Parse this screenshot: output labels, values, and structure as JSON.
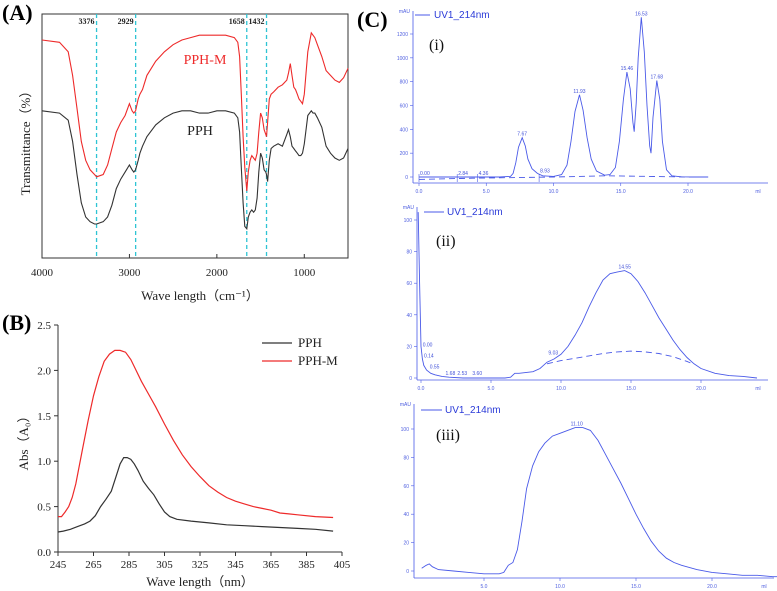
{
  "figure": {
    "panel_labels": [
      "(A)",
      "(B)",
      "(C)"
    ]
  },
  "colors": {
    "pph": "#333333",
    "pphm": "#ee2a2a",
    "guide": "#2ec4d4",
    "uv": "#4a5ae8"
  },
  "chart_data": [
    {
      "id": "A",
      "type": "line",
      "title": "",
      "xlabel": "Wave length（cm⁻¹）",
      "ylabel": "Transmittance（%）",
      "xlim": [
        4000,
        500
      ],
      "xticks": [
        "4000",
        "3000",
        "2000",
        "1000"
      ],
      "xtick_values": [
        4000,
        3000,
        2000,
        1000
      ],
      "y_units": "arbitrary (relative transmittance, 0 = bottom, 1 = top)",
      "ylim": [
        0,
        1
      ],
      "guide_lines": [
        {
          "x": 3376,
          "label": "3376"
        },
        {
          "x": 2929,
          "label": "2929"
        },
        {
          "x": 1658,
          "label": "1658"
        },
        {
          "x": 1432,
          "label": "1432"
        }
      ],
      "annotations": [
        {
          "text": "PPH-M",
          "series": "PPH-M"
        },
        {
          "text": "PPH",
          "series": "PPH"
        }
      ],
      "series": [
        {
          "name": "PPH-M",
          "x": [
            4000,
            3800,
            3700,
            3650,
            3600,
            3550,
            3500,
            3450,
            3400,
            3376,
            3300,
            3250,
            3200,
            3150,
            3100,
            3050,
            3000,
            2970,
            2950,
            2929,
            2900,
            2880,
            2850,
            2800,
            2700,
            2600,
            2500,
            2400,
            2300,
            2200,
            2100,
            2000,
            1900,
            1800,
            1760,
            1740,
            1720,
            1700,
            1680,
            1658,
            1640,
            1620,
            1600,
            1580,
            1560,
            1540,
            1520,
            1500,
            1480,
            1460,
            1440,
            1432,
            1420,
            1400,
            1380,
            1350,
            1300,
            1250,
            1200,
            1180,
            1160,
            1140,
            1120,
            1100,
            1080,
            1060,
            1040,
            1020,
            1000,
            960,
            920,
            900,
            880,
            850,
            800,
            750,
            700,
            650,
            600,
            550,
            500
          ],
          "y": [
            0.89,
            0.88,
            0.84,
            0.74,
            0.6,
            0.46,
            0.38,
            0.34,
            0.32,
            0.31,
            0.32,
            0.36,
            0.43,
            0.5,
            0.54,
            0.57,
            0.62,
            0.59,
            0.58,
            0.59,
            0.64,
            0.66,
            0.68,
            0.74,
            0.8,
            0.84,
            0.87,
            0.89,
            0.9,
            0.91,
            0.91,
            0.91,
            0.91,
            0.9,
            0.88,
            0.82,
            0.66,
            0.48,
            0.35,
            0.25,
            0.33,
            0.38,
            0.4,
            0.39,
            0.38,
            0.41,
            0.5,
            0.58,
            0.56,
            0.51,
            0.49,
            0.48,
            0.54,
            0.64,
            0.66,
            0.67,
            0.69,
            0.7,
            0.72,
            0.75,
            0.79,
            0.74,
            0.69,
            0.68,
            0.66,
            0.64,
            0.63,
            0.62,
            0.66,
            0.84,
            0.92,
            0.91,
            0.9,
            0.87,
            0.82,
            0.76,
            0.74,
            0.72,
            0.71,
            0.73,
            0.77
          ]
        },
        {
          "name": "PPH",
          "x": [
            4000,
            3800,
            3700,
            3650,
            3600,
            3550,
            3500,
            3450,
            3400,
            3376,
            3300,
            3250,
            3200,
            3150,
            3100,
            3050,
            3000,
            2970,
            2950,
            2929,
            2900,
            2880,
            2850,
            2800,
            2700,
            2600,
            2500,
            2400,
            2300,
            2200,
            2100,
            2000,
            1900,
            1800,
            1760,
            1740,
            1720,
            1700,
            1680,
            1658,
            1640,
            1620,
            1600,
            1580,
            1560,
            1540,
            1520,
            1500,
            1480,
            1460,
            1440,
            1432,
            1420,
            1400,
            1380,
            1350,
            1300,
            1250,
            1200,
            1180,
            1160,
            1140,
            1120,
            1100,
            1080,
            1060,
            1040,
            1020,
            1000,
            960,
            920,
            900,
            880,
            850,
            800,
            750,
            700,
            650,
            600,
            550,
            500
          ],
          "y": [
            0.59,
            0.58,
            0.55,
            0.46,
            0.32,
            0.2,
            0.14,
            0.12,
            0.11,
            0.11,
            0.12,
            0.14,
            0.19,
            0.26,
            0.3,
            0.33,
            0.36,
            0.34,
            0.33,
            0.34,
            0.38,
            0.41,
            0.44,
            0.48,
            0.53,
            0.56,
            0.58,
            0.59,
            0.59,
            0.58,
            0.58,
            0.59,
            0.59,
            0.58,
            0.56,
            0.5,
            0.35,
            0.2,
            0.1,
            0.09,
            0.14,
            0.16,
            0.17,
            0.16,
            0.17,
            0.22,
            0.33,
            0.41,
            0.39,
            0.34,
            0.33,
            0.32,
            0.29,
            0.38,
            0.43,
            0.44,
            0.45,
            0.44,
            0.49,
            0.51,
            0.48,
            0.44,
            0.43,
            0.42,
            0.41,
            0.4,
            0.4,
            0.41,
            0.45,
            0.57,
            0.59,
            0.58,
            0.58,
            0.56,
            0.52,
            0.44,
            0.41,
            0.39,
            0.38,
            0.39,
            0.43
          ]
        }
      ]
    },
    {
      "id": "B",
      "type": "line",
      "title": "",
      "xlabel": "Wave length（nm）",
      "ylabel": "Abs（A₀）",
      "xlim": [
        245,
        405
      ],
      "ylim": [
        0,
        2.5
      ],
      "xticks": [
        "245",
        "265",
        "285",
        "305",
        "325",
        "345",
        "365",
        "385",
        "405"
      ],
      "xtick_values": [
        245,
        265,
        285,
        305,
        325,
        345,
        365,
        385,
        405
      ],
      "yticks": [
        "0.0",
        "0.5",
        "1.0",
        "1.5",
        "2.0",
        "2.5"
      ],
      "ytick_values": [
        0,
        0.5,
        1.0,
        1.5,
        2.0,
        2.5
      ],
      "legend": {
        "position": "top-right",
        "entries": [
          "PPH",
          "PPH-M"
        ]
      },
      "series": [
        {
          "name": "PPH",
          "x": [
            245,
            248,
            252,
            256,
            260,
            263,
            266,
            269,
            272,
            275,
            278,
            280,
            282,
            284,
            286,
            288,
            290,
            293,
            296,
            299,
            302,
            305,
            308,
            312,
            320,
            330,
            340,
            350,
            360,
            370,
            380,
            390,
            400
          ],
          "y": [
            0.22,
            0.23,
            0.25,
            0.28,
            0.31,
            0.34,
            0.4,
            0.5,
            0.58,
            0.67,
            0.85,
            0.97,
            1.04,
            1.04,
            1.02,
            0.97,
            0.9,
            0.78,
            0.7,
            0.63,
            0.53,
            0.44,
            0.39,
            0.36,
            0.34,
            0.32,
            0.3,
            0.29,
            0.28,
            0.27,
            0.26,
            0.25,
            0.23
          ]
        },
        {
          "name": "PPH-M",
          "x": [
            245,
            247,
            249,
            251,
            253,
            255,
            257,
            259,
            262,
            265,
            268,
            271,
            274,
            277,
            280,
            283,
            286,
            289,
            292,
            296,
            300,
            305,
            310,
            315,
            320,
            325,
            330,
            335,
            340,
            345,
            350,
            355,
            360,
            365,
            370,
            375,
            380,
            390,
            400
          ],
          "y": [
            0.39,
            0.39,
            0.44,
            0.5,
            0.6,
            0.75,
            0.95,
            1.15,
            1.45,
            1.72,
            1.93,
            2.1,
            2.18,
            2.22,
            2.22,
            2.2,
            2.12,
            2.0,
            1.88,
            1.74,
            1.6,
            1.41,
            1.23,
            1.07,
            0.94,
            0.83,
            0.73,
            0.66,
            0.6,
            0.56,
            0.53,
            0.5,
            0.48,
            0.46,
            0.43,
            0.42,
            0.41,
            0.39,
            0.38
          ]
        }
      ]
    },
    {
      "id": "C-i",
      "type": "line",
      "panel_tag": "(i)",
      "legend": {
        "position": "top-left",
        "entries": [
          "UV1_214nm"
        ]
      },
      "y_unit_label": "mAU",
      "x_unit_label": "ml",
      "xlim": [
        0,
        21.5
      ],
      "ylim": [
        0,
        1400
      ],
      "xticks": [
        "0.0",
        "5.0",
        "10.0",
        "15.0",
        "20.0"
      ],
      "xtick_values": [
        0,
        5,
        10,
        15,
        20
      ],
      "yticks": [
        "0",
        "200",
        "400",
        "600",
        "800",
        "1000",
        "1200"
      ],
      "ytick_values": [
        0,
        200,
        400,
        600,
        800,
        1000,
        1200
      ],
      "peaks": [
        {
          "x": 7.67,
          "y": 330,
          "label": "7.67"
        },
        {
          "x": 11.93,
          "y": 690,
          "label": "11.93"
        },
        {
          "x": 15.46,
          "y": 880,
          "label": "15.46"
        },
        {
          "x": 16.53,
          "y": 1340,
          "label": "16.53"
        },
        {
          "x": 17.68,
          "y": 810,
          "label": "17.68"
        }
      ],
      "small_labels": [
        "0.00",
        "2.84",
        "4.36",
        "8.93"
      ],
      "series": [
        {
          "name": "UV1_214nm",
          "x": [
            0,
            2,
            4,
            6,
            6.8,
            7.0,
            7.2,
            7.4,
            7.67,
            7.9,
            8.1,
            8.4,
            8.8,
            9.2,
            10,
            10.6,
            11.0,
            11.3,
            11.6,
            11.93,
            12.2,
            12.5,
            12.8,
            13.2,
            13.8,
            14.2,
            14.6,
            14.9,
            15.2,
            15.46,
            15.7,
            15.9,
            16.0,
            16.15,
            16.3,
            16.53,
            16.75,
            16.95,
            17.15,
            17.25,
            17.4,
            17.68,
            17.9,
            18.1,
            18.4,
            18.8,
            19.5,
            20.5,
            21.5
          ],
          "y": [
            0,
            0,
            0,
            0,
            5,
            30,
            120,
            250,
            330,
            260,
            150,
            70,
            30,
            10,
            5,
            20,
            100,
            300,
            550,
            690,
            560,
            330,
            150,
            50,
            15,
            20,
            80,
            300,
            650,
            880,
            740,
            460,
            380,
            620,
            1000,
            1340,
            1050,
            600,
            260,
            200,
            500,
            810,
            650,
            300,
            60,
            10,
            2,
            0,
            0
          ]
        },
        {
          "name": "baseline",
          "dashed": true,
          "x": [
            0,
            4,
            10,
            14,
            20,
            21.5
          ],
          "y": [
            -20,
            -10,
            0,
            10,
            0,
            0
          ]
        }
      ]
    },
    {
      "id": "C-ii",
      "type": "line",
      "panel_tag": "(ii)",
      "legend": {
        "position": "top-left",
        "entries": [
          "UV1_214nm"
        ]
      },
      "y_unit_label": "mAU",
      "x_unit_label": "ml",
      "xlim": [
        -0.5,
        24.5
      ],
      "ylim": [
        0,
        105
      ],
      "xticks": [
        "0.0",
        "5.0",
        "10.0",
        "15.0",
        "20.0"
      ],
      "xtick_values": [
        0,
        5,
        10,
        15,
        20
      ],
      "yticks": [
        "0",
        "20",
        "40",
        "60",
        "80",
        "100"
      ],
      "ytick_values": [
        0,
        20,
        40,
        60,
        80,
        100
      ],
      "peaks": [
        {
          "x": 14.55,
          "y": 68,
          "label": "14.55"
        }
      ],
      "small_labels": [
        "0.00",
        "0.14",
        "0.55",
        "1.68",
        "2.53",
        "3.60",
        "9.03"
      ],
      "series": [
        {
          "name": "UV1_214nm",
          "x": [
            -0.2,
            -0.1,
            0,
            0.1,
            0.2,
            0.4,
            0.7,
            1.0,
            1.5,
            2,
            3,
            4,
            5,
            6,
            6.4,
            6.7,
            7,
            8,
            8.5,
            9,
            9.5,
            10,
            10.5,
            11,
            11.5,
            12,
            12.5,
            13,
            13.5,
            14,
            14.55,
            15,
            15.5,
            16,
            16.5,
            17,
            17.5,
            18,
            18.5,
            19,
            19.5,
            20,
            21,
            22,
            23,
            24
          ],
          "y": [
            105,
            60,
            20,
            12,
            8,
            5,
            3,
            2,
            1,
            0.5,
            0,
            0,
            0,
            0,
            0.5,
            3,
            3,
            4,
            6,
            10,
            12,
            15,
            20,
            27,
            35,
            45,
            54,
            62,
            66,
            67,
            68,
            66,
            61,
            54,
            46,
            38,
            31,
            24,
            18,
            13,
            9,
            6,
            3,
            1.5,
            1,
            0
          ]
        },
        {
          "name": "baseline",
          "dashed": true,
          "x": [
            9,
            10,
            11,
            12,
            13,
            14,
            15,
            16,
            17,
            18,
            19,
            19.4
          ],
          "y": [
            9,
            11,
            12.5,
            14,
            15.5,
            16.5,
            17,
            16.5,
            15.5,
            13.5,
            10.5,
            9
          ]
        }
      ]
    },
    {
      "id": "C-iii",
      "type": "line",
      "panel_tag": "(iii)",
      "legend": {
        "position": "top-left",
        "entries": [
          "UV1_214nm"
        ]
      },
      "y_unit_label": "mAU",
      "x_unit_label": "ml",
      "xlim": [
        0.9,
        24.5
      ],
      "ylim": [
        -5,
        110
      ],
      "xticks": [
        "5.0",
        "10.0",
        "15.0",
        "20.0"
      ],
      "xtick_values": [
        5,
        10,
        15,
        20
      ],
      "yticks": [
        "0",
        "20",
        "40",
        "60",
        "80",
        "100"
      ],
      "ytick_values": [
        0,
        20,
        40,
        60,
        80,
        100
      ],
      "peaks": [
        {
          "x": 11.1,
          "y": 101,
          "label": "11.10"
        }
      ],
      "series": [
        {
          "name": "UV1_214nm",
          "x": [
            0.9,
            1.2,
            1.4,
            1.6,
            2,
            3,
            4,
            5,
            6,
            6.3,
            6.6,
            6.9,
            7.2,
            7.5,
            7.8,
            8.2,
            8.6,
            9,
            9.5,
            10,
            10.5,
            11,
            11.5,
            12,
            12.5,
            13,
            13.5,
            14,
            14.5,
            15,
            15.5,
            16,
            16.5,
            17,
            17.5,
            18,
            19,
            20,
            21,
            22,
            23,
            24,
            24.5
          ],
          "y": [
            2,
            4,
            5,
            3,
            1,
            0,
            -1,
            -2,
            -2,
            -1,
            4,
            6,
            15,
            35,
            58,
            74,
            84,
            90,
            95,
            97,
            99,
            101,
            101,
            99,
            92,
            82,
            72,
            62,
            51,
            40,
            30,
            21,
            14,
            9,
            6,
            4,
            1,
            -1,
            -2,
            -3,
            -3,
            -4,
            -4
          ]
        }
      ]
    }
  ]
}
